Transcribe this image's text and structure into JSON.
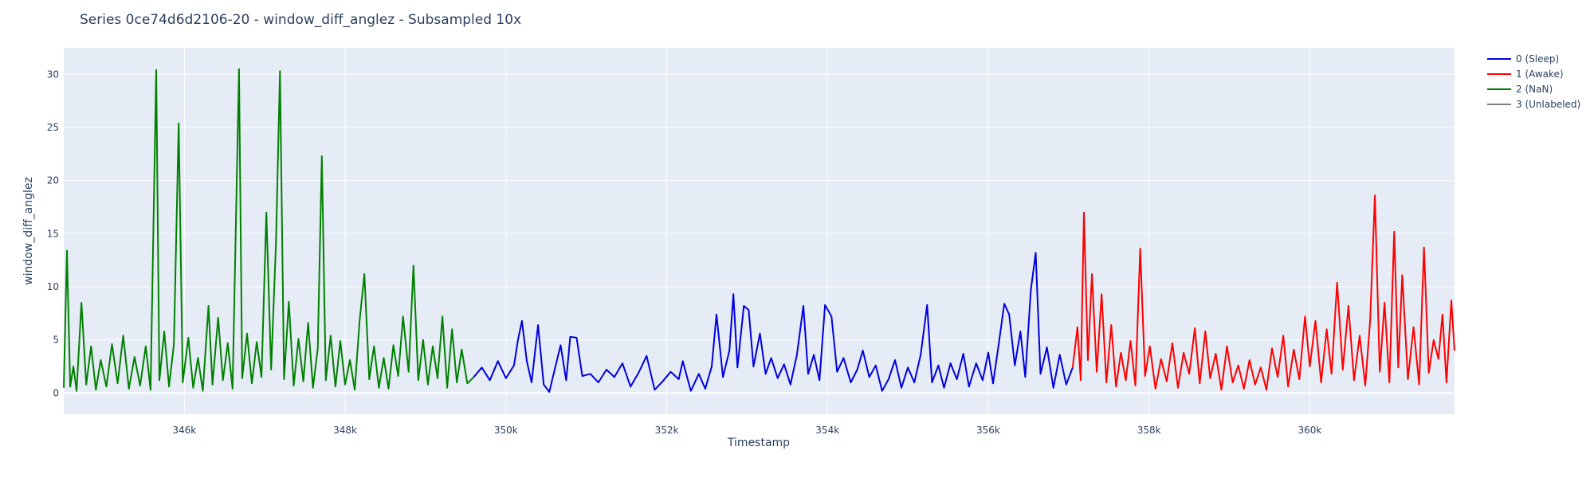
{
  "chart_data": {
    "type": "line",
    "title": "Series 0ce74d6d2106-20 - window_diff_anglez - Subsampled 10x",
    "xlabel": "Timestamp",
    "ylabel": "window_diff_anglez",
    "xlim": [
      344500,
      361800
    ],
    "ylim": [
      -2,
      32.5
    ],
    "xticks": [
      346000,
      348000,
      350000,
      352000,
      354000,
      356000,
      358000,
      360000
    ],
    "xtick_labels": [
      "346k",
      "348k",
      "350k",
      "352k",
      "354k",
      "356k",
      "358k",
      "360k"
    ],
    "yticks": [
      0,
      5,
      10,
      15,
      20,
      25,
      30
    ],
    "ytick_labels": [
      "0",
      "5",
      "10",
      "15",
      "20",
      "25",
      "30"
    ],
    "grid": true,
    "legend_position": "top-right",
    "series": [
      {
        "name": "0 (Sleep)",
        "color": "#0000dd",
        "points": [
          [
            349600,
            1.5
          ],
          [
            349700,
            2.4
          ],
          [
            349800,
            1.2
          ],
          [
            349900,
            3.0
          ],
          [
            350000,
            1.4
          ],
          [
            350100,
            2.6
          ],
          [
            350150,
            5.0
          ],
          [
            350200,
            6.8
          ],
          [
            350260,
            3.0
          ],
          [
            350320,
            1.0
          ],
          [
            350400,
            6.4
          ],
          [
            350470,
            0.8
          ],
          [
            350540,
            0.1
          ],
          [
            350600,
            2.0
          ],
          [
            350680,
            4.5
          ],
          [
            350750,
            1.2
          ],
          [
            350800,
            5.3
          ],
          [
            350880,
            5.2
          ],
          [
            350950,
            1.6
          ],
          [
            351050,
            1.8
          ],
          [
            351150,
            1.0
          ],
          [
            351250,
            2.2
          ],
          [
            351350,
            1.5
          ],
          [
            351450,
            2.8
          ],
          [
            351550,
            0.6
          ],
          [
            351650,
            1.9
          ],
          [
            351750,
            3.5
          ],
          [
            351850,
            0.3
          ],
          [
            351950,
            1.1
          ],
          [
            352050,
            2.0
          ],
          [
            352150,
            1.3
          ],
          [
            352200,
            3.0
          ],
          [
            352300,
            0.2
          ],
          [
            352400,
            1.8
          ],
          [
            352480,
            0.4
          ],
          [
            352560,
            2.5
          ],
          [
            352620,
            7.4
          ],
          [
            352700,
            1.5
          ],
          [
            352780,
            4.0
          ],
          [
            352830,
            9.3
          ],
          [
            352880,
            2.4
          ],
          [
            352960,
            8.2
          ],
          [
            353020,
            7.8
          ],
          [
            353080,
            2.5
          ],
          [
            353160,
            5.6
          ],
          [
            353230,
            1.8
          ],
          [
            353300,
            3.3
          ],
          [
            353380,
            1.4
          ],
          [
            353460,
            2.7
          ],
          [
            353540,
            0.8
          ],
          [
            353620,
            3.6
          ],
          [
            353700,
            8.2
          ],
          [
            353760,
            1.8
          ],
          [
            353830,
            3.6
          ],
          [
            353900,
            1.2
          ],
          [
            353970,
            8.3
          ],
          [
            354050,
            7.2
          ],
          [
            354120,
            2.0
          ],
          [
            354200,
            3.3
          ],
          [
            354290,
            1.0
          ],
          [
            354370,
            2.2
          ],
          [
            354440,
            4.0
          ],
          [
            354520,
            1.5
          ],
          [
            354600,
            2.6
          ],
          [
            354680,
            0.2
          ],
          [
            354760,
            1.3
          ],
          [
            354840,
            3.1
          ],
          [
            354920,
            0.5
          ],
          [
            355000,
            2.4
          ],
          [
            355080,
            1.0
          ],
          [
            355160,
            3.6
          ],
          [
            355240,
            8.3
          ],
          [
            355300,
            1.0
          ],
          [
            355380,
            2.6
          ],
          [
            355450,
            0.5
          ],
          [
            355530,
            2.8
          ],
          [
            355610,
            1.3
          ],
          [
            355690,
            3.7
          ],
          [
            355760,
            0.6
          ],
          [
            355850,
            2.8
          ],
          [
            355930,
            1.2
          ],
          [
            356000,
            3.8
          ],
          [
            356060,
            0.9
          ],
          [
            356130,
            4.6
          ],
          [
            356200,
            8.4
          ],
          [
            356260,
            7.4
          ],
          [
            356330,
            2.6
          ],
          [
            356400,
            5.8
          ],
          [
            356460,
            1.5
          ],
          [
            356530,
            9.7
          ],
          [
            356590,
            13.2
          ],
          [
            356650,
            1.8
          ],
          [
            356730,
            4.3
          ],
          [
            356810,
            0.5
          ],
          [
            356890,
            3.6
          ],
          [
            356970,
            0.8
          ],
          [
            357050,
            2.4
          ]
        ]
      },
      {
        "name": "1 (Awake)",
        "color": "#ff0000",
        "points": [
          [
            357050,
            2.4
          ],
          [
            357110,
            6.2
          ],
          [
            357150,
            1.2
          ],
          [
            357190,
            17.0
          ],
          [
            357240,
            3.1
          ],
          [
            357290,
            11.2
          ],
          [
            357350,
            2.0
          ],
          [
            357410,
            9.3
          ],
          [
            357470,
            1.0
          ],
          [
            357530,
            6.4
          ],
          [
            357590,
            0.6
          ],
          [
            357650,
            3.8
          ],
          [
            357710,
            1.2
          ],
          [
            357770,
            4.9
          ],
          [
            357830,
            0.7
          ],
          [
            357890,
            13.6
          ],
          [
            357950,
            1.6
          ],
          [
            358010,
            4.4
          ],
          [
            358080,
            0.4
          ],
          [
            358150,
            3.2
          ],
          [
            358220,
            1.1
          ],
          [
            358290,
            4.7
          ],
          [
            358360,
            0.5
          ],
          [
            358430,
            3.8
          ],
          [
            358500,
            1.8
          ],
          [
            358570,
            6.1
          ],
          [
            358630,
            0.9
          ],
          [
            358700,
            5.8
          ],
          [
            358760,
            1.4
          ],
          [
            358830,
            3.7
          ],
          [
            358900,
            0.3
          ],
          [
            358970,
            4.4
          ],
          [
            359040,
            1.0
          ],
          [
            359110,
            2.6
          ],
          [
            359180,
            0.4
          ],
          [
            359250,
            3.1
          ],
          [
            359320,
            0.8
          ],
          [
            359390,
            2.4
          ],
          [
            359460,
            0.3
          ],
          [
            359530,
            4.2
          ],
          [
            359600,
            1.5
          ],
          [
            359670,
            5.4
          ],
          [
            359730,
            0.6
          ],
          [
            359800,
            4.1
          ],
          [
            359870,
            1.3
          ],
          [
            359940,
            7.2
          ],
          [
            360000,
            2.5
          ],
          [
            360070,
            6.8
          ],
          [
            360140,
            1.0
          ],
          [
            360210,
            6.0
          ],
          [
            360270,
            1.8
          ],
          [
            360340,
            10.4
          ],
          [
            360410,
            2.2
          ],
          [
            360480,
            8.2
          ],
          [
            360550,
            1.2
          ],
          [
            360620,
            5.4
          ],
          [
            360690,
            0.7
          ],
          [
            360750,
            6.8
          ],
          [
            360810,
            18.6
          ],
          [
            360870,
            2.0
          ],
          [
            360930,
            8.5
          ],
          [
            360990,
            1.0
          ],
          [
            361050,
            15.2
          ],
          [
            361100,
            2.4
          ],
          [
            361150,
            11.1
          ],
          [
            361220,
            1.3
          ],
          [
            361290,
            6.2
          ],
          [
            361360,
            0.8
          ],
          [
            361420,
            13.7
          ],
          [
            361480,
            1.9
          ],
          [
            361540,
            5.0
          ],
          [
            361600,
            3.2
          ],
          [
            361650,
            7.4
          ],
          [
            361700,
            1.0
          ],
          [
            361760,
            8.7
          ],
          [
            361800,
            4.0
          ]
        ]
      },
      {
        "name": "2 (NaN)",
        "color": "#008000",
        "points": [
          [
            344500,
            0.5
          ],
          [
            344540,
            13.4
          ],
          [
            344580,
            0.6
          ],
          [
            344620,
            2.5
          ],
          [
            344660,
            0.2
          ],
          [
            344720,
            8.5
          ],
          [
            344780,
            0.8
          ],
          [
            344840,
            4.4
          ],
          [
            344900,
            0.3
          ],
          [
            344960,
            3.1
          ],
          [
            345030,
            0.6
          ],
          [
            345100,
            4.6
          ],
          [
            345170,
            0.9
          ],
          [
            345240,
            5.4
          ],
          [
            345310,
            0.4
          ],
          [
            345380,
            3.4
          ],
          [
            345450,
            0.7
          ],
          [
            345520,
            4.4
          ],
          [
            345580,
            0.3
          ],
          [
            345650,
            30.4
          ],
          [
            345690,
            1.2
          ],
          [
            345750,
            5.8
          ],
          [
            345810,
            0.6
          ],
          [
            345870,
            4.6
          ],
          [
            345930,
            25.4
          ],
          [
            345980,
            1.0
          ],
          [
            346050,
            5.2
          ],
          [
            346110,
            0.5
          ],
          [
            346170,
            3.3
          ],
          [
            346230,
            0.2
          ],
          [
            346300,
            8.2
          ],
          [
            346350,
            0.8
          ],
          [
            346420,
            7.1
          ],
          [
            346480,
            1.2
          ],
          [
            346540,
            4.7
          ],
          [
            346600,
            0.4
          ],
          [
            346680,
            30.5
          ],
          [
            346720,
            1.4
          ],
          [
            346780,
            5.6
          ],
          [
            346840,
            0.9
          ],
          [
            346900,
            4.8
          ],
          [
            346960,
            1.5
          ],
          [
            347020,
            17.0
          ],
          [
            347080,
            2.2
          ],
          [
            347140,
            14.2
          ],
          [
            347190,
            30.3
          ],
          [
            347240,
            1.3
          ],
          [
            347300,
            8.6
          ],
          [
            347360,
            0.7
          ],
          [
            347420,
            5.1
          ],
          [
            347480,
            1.1
          ],
          [
            347540,
            6.6
          ],
          [
            347600,
            0.5
          ],
          [
            347660,
            4.2
          ],
          [
            347710,
            22.3
          ],
          [
            347760,
            1.2
          ],
          [
            347820,
            5.4
          ],
          [
            347880,
            0.6
          ],
          [
            347940,
            4.9
          ],
          [
            348000,
            0.8
          ],
          [
            348060,
            3.1
          ],
          [
            348120,
            0.3
          ],
          [
            348180,
            6.8
          ],
          [
            348240,
            11.2
          ],
          [
            348300,
            1.3
          ],
          [
            348360,
            4.4
          ],
          [
            348420,
            0.5
          ],
          [
            348480,
            3.3
          ],
          [
            348540,
            0.4
          ],
          [
            348600,
            4.5
          ],
          [
            348660,
            1.6
          ],
          [
            348720,
            7.2
          ],
          [
            348790,
            2.0
          ],
          [
            348850,
            12.0
          ],
          [
            348910,
            1.2
          ],
          [
            348970,
            5.0
          ],
          [
            349030,
            0.8
          ],
          [
            349090,
            4.4
          ],
          [
            349150,
            1.4
          ],
          [
            349210,
            7.2
          ],
          [
            349270,
            0.5
          ],
          [
            349330,
            6.0
          ],
          [
            349390,
            1.0
          ],
          [
            349450,
            4.1
          ],
          [
            349520,
            0.9
          ],
          [
            349600,
            1.5
          ]
        ]
      },
      {
        "name": "3 (Unlabeled)",
        "color": "#808080",
        "points": []
      }
    ]
  }
}
